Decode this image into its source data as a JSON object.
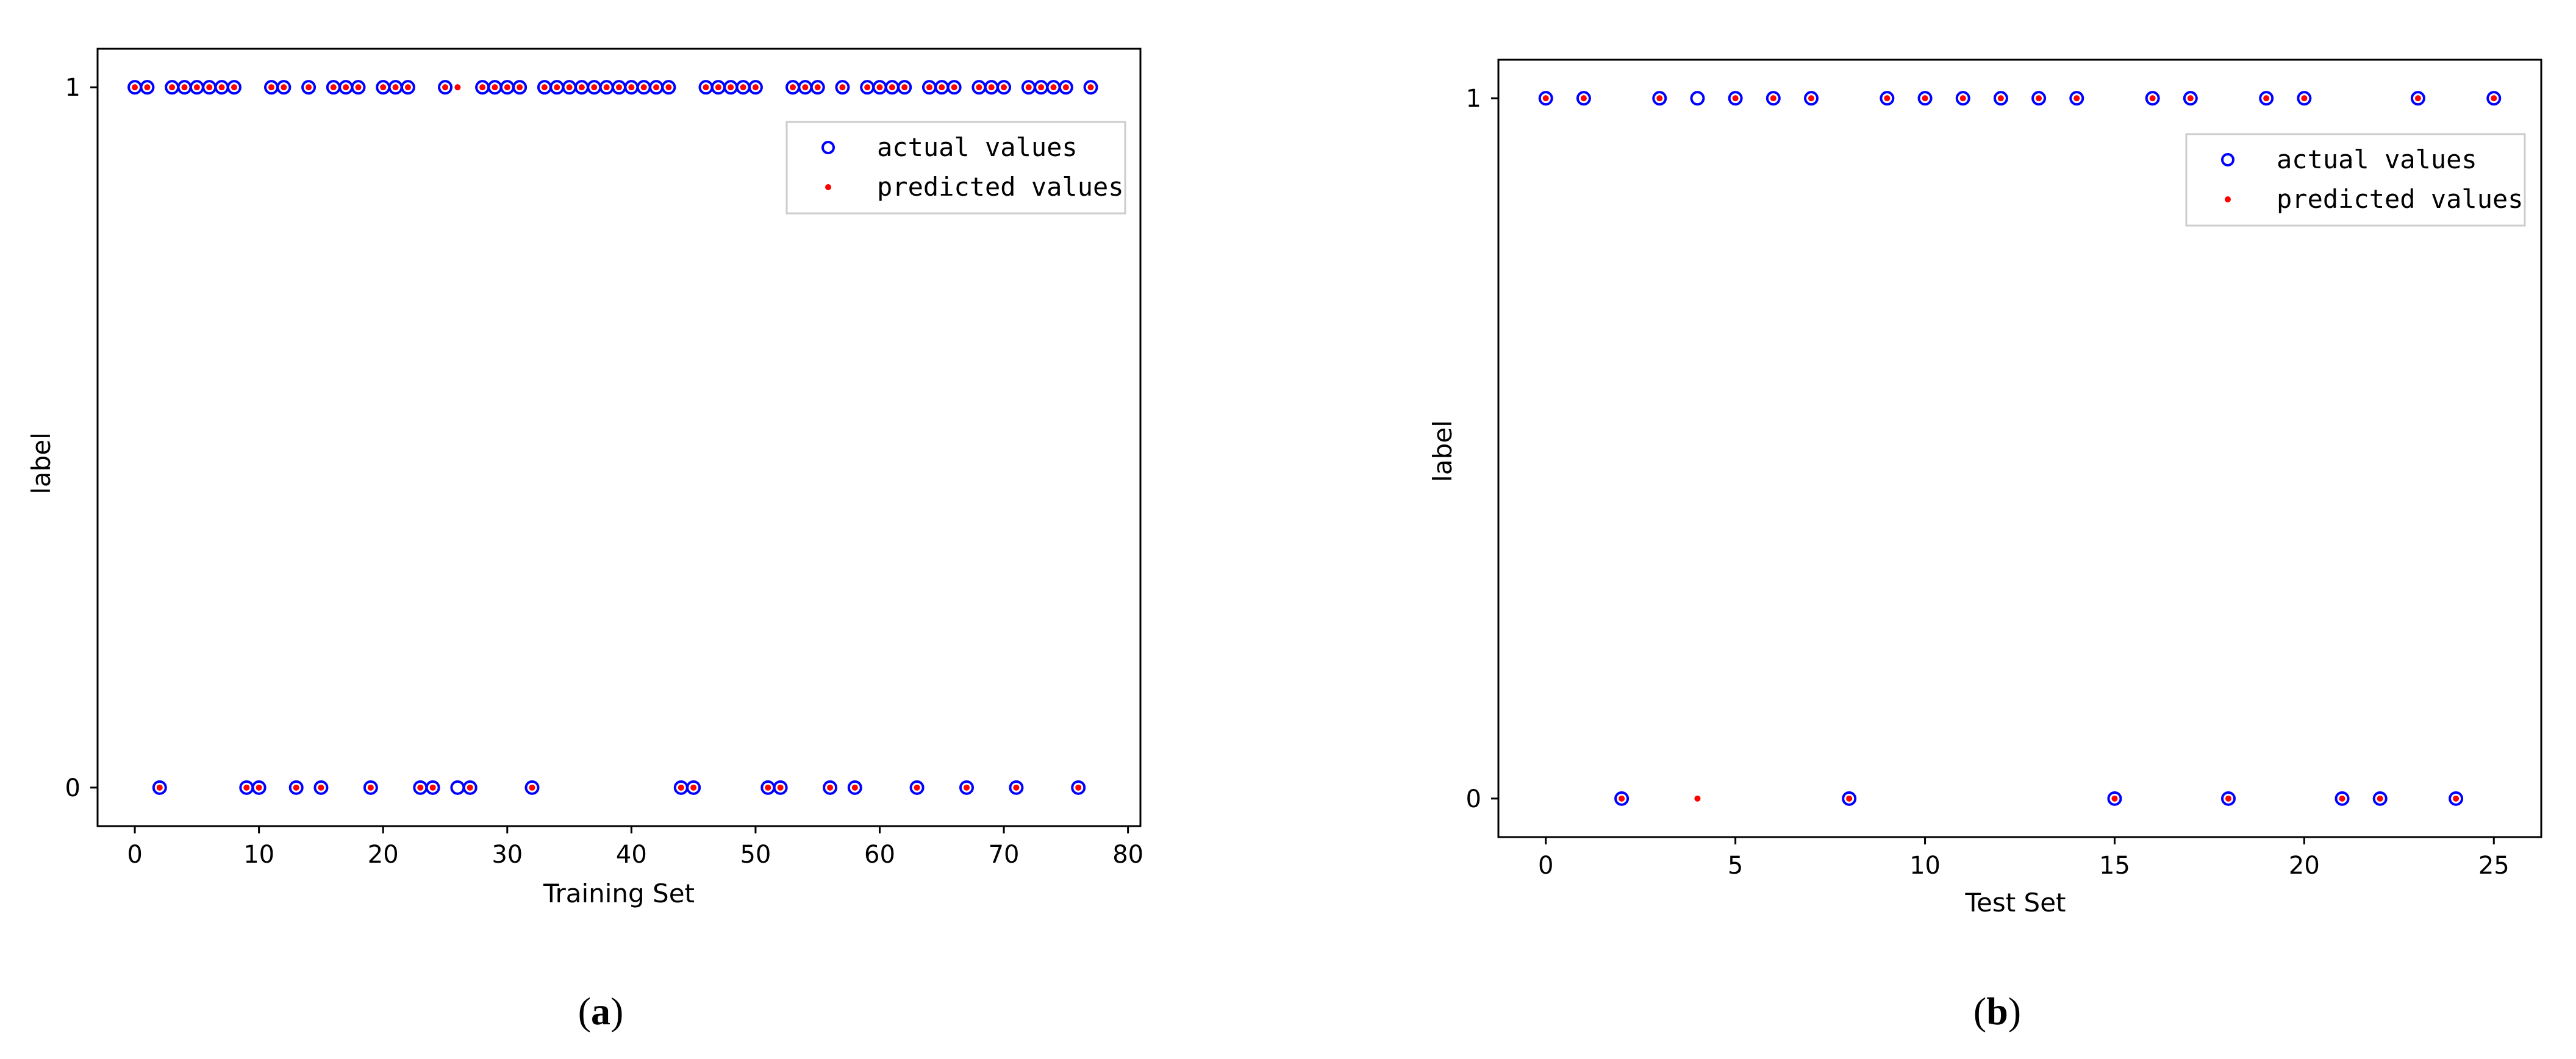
{
  "chart_data": [
    {
      "type": "scatter",
      "xlabel": "Training Set",
      "ylabel": "label",
      "xlim": [
        -3,
        81
      ],
      "ylim": [
        -0.055,
        1.055
      ],
      "xticks": [
        0,
        10,
        20,
        30,
        40,
        50,
        60,
        70,
        80
      ],
      "yticks": [
        0,
        1
      ],
      "grid": false,
      "legend": "upper-right",
      "caption_letter": "a",
      "colors": {
        "actual": "#0000ff",
        "predicted": "#ff0000"
      },
      "series": [
        {
          "name": "actual values",
          "marker": "hollow-circle",
          "x": [
            0,
            1,
            2,
            3,
            4,
            5,
            6,
            7,
            8,
            9,
            10,
            11,
            12,
            13,
            14,
            15,
            16,
            17,
            18,
            19,
            20,
            21,
            22,
            23,
            24,
            25,
            26,
            27,
            28,
            29,
            30,
            31,
            32,
            33,
            34,
            35,
            36,
            37,
            38,
            39,
            40,
            41,
            42,
            43,
            44,
            45,
            46,
            47,
            48,
            49,
            50,
            51,
            52,
            53,
            54,
            55,
            56,
            57,
            58,
            59,
            60,
            61,
            62,
            63,
            64,
            65,
            66,
            67,
            68,
            69,
            70,
            71,
            72,
            73,
            74,
            75,
            76,
            77
          ],
          "y": [
            1,
            1,
            0,
            1,
            1,
            1,
            1,
            1,
            1,
            0,
            0,
            1,
            1,
            0,
            1,
            0,
            1,
            1,
            1,
            0,
            1,
            1,
            1,
            0,
            0,
            1,
            0,
            0,
            1,
            1,
            1,
            1,
            0,
            1,
            1,
            1,
            1,
            1,
            1,
            1,
            1,
            1,
            1,
            1,
            0,
            0,
            1,
            1,
            1,
            1,
            1,
            0,
            0,
            1,
            1,
            1,
            0,
            1,
            0,
            1,
            1,
            1,
            1,
            0,
            1,
            1,
            1,
            0,
            1,
            1,
            1,
            0,
            1,
            1,
            1,
            1,
            0,
            1
          ]
        },
        {
          "name": "predicted values",
          "marker": "dot",
          "x": [
            0,
            1,
            2,
            3,
            4,
            5,
            6,
            7,
            8,
            9,
            10,
            11,
            12,
            13,
            14,
            15,
            16,
            17,
            18,
            19,
            20,
            21,
            22,
            23,
            24,
            25,
            26,
            27,
            28,
            29,
            30,
            31,
            32,
            33,
            34,
            35,
            36,
            37,
            38,
            39,
            40,
            41,
            42,
            43,
            44,
            45,
            46,
            47,
            48,
            49,
            50,
            51,
            52,
            53,
            54,
            55,
            56,
            57,
            58,
            59,
            60,
            61,
            62,
            63,
            64,
            65,
            66,
            67,
            68,
            69,
            70,
            71,
            72,
            73,
            74,
            75,
            76,
            77
          ],
          "y": [
            1,
            1,
            0,
            1,
            1,
            1,
            1,
            1,
            1,
            0,
            0,
            1,
            1,
            0,
            1,
            0,
            1,
            1,
            1,
            0,
            1,
            1,
            1,
            0,
            0,
            1,
            1,
            0,
            1,
            1,
            1,
            1,
            0,
            1,
            1,
            1,
            1,
            1,
            1,
            1,
            1,
            1,
            1,
            1,
            0,
            0,
            1,
            1,
            1,
            1,
            1,
            0,
            0,
            1,
            1,
            1,
            0,
            1,
            0,
            1,
            1,
            1,
            1,
            0,
            1,
            1,
            1,
            0,
            1,
            1,
            1,
            0,
            1,
            1,
            1,
            1,
            0,
            1
          ]
        }
      ]
    },
    {
      "type": "scatter",
      "xlabel": "Test Set",
      "ylabel": "label",
      "xlim": [
        -1.25,
        26.25
      ],
      "ylim": [
        -0.055,
        1.055
      ],
      "xticks": [
        0,
        5,
        10,
        15,
        20,
        25
      ],
      "yticks": [
        0,
        1
      ],
      "grid": false,
      "legend": "upper-right",
      "caption_letter": "b",
      "colors": {
        "actual": "#0000ff",
        "predicted": "#ff0000"
      },
      "series": [
        {
          "name": "actual values",
          "marker": "hollow-circle",
          "x": [
            0,
            1,
            2,
            3,
            4,
            5,
            6,
            7,
            8,
            9,
            10,
            11,
            12,
            13,
            14,
            15,
            16,
            17,
            18,
            19,
            20,
            21,
            22,
            23,
            24,
            25
          ],
          "y": [
            1,
            1,
            0,
            1,
            1,
            1,
            1,
            1,
            0,
            1,
            1,
            1,
            1,
            1,
            1,
            0,
            1,
            1,
            0,
            1,
            1,
            0,
            0,
            1,
            0,
            1
          ]
        },
        {
          "name": "predicted values",
          "marker": "dot",
          "x": [
            0,
            1,
            2,
            3,
            4,
            5,
            6,
            7,
            8,
            9,
            10,
            11,
            12,
            13,
            14,
            15,
            16,
            17,
            18,
            19,
            20,
            21,
            22,
            23,
            24,
            25
          ],
          "y": [
            1,
            1,
            0,
            1,
            0,
            1,
            1,
            1,
            0,
            1,
            1,
            1,
            1,
            1,
            1,
            0,
            1,
            1,
            0,
            1,
            1,
            0,
            0,
            1,
            0,
            1
          ]
        }
      ]
    }
  ]
}
